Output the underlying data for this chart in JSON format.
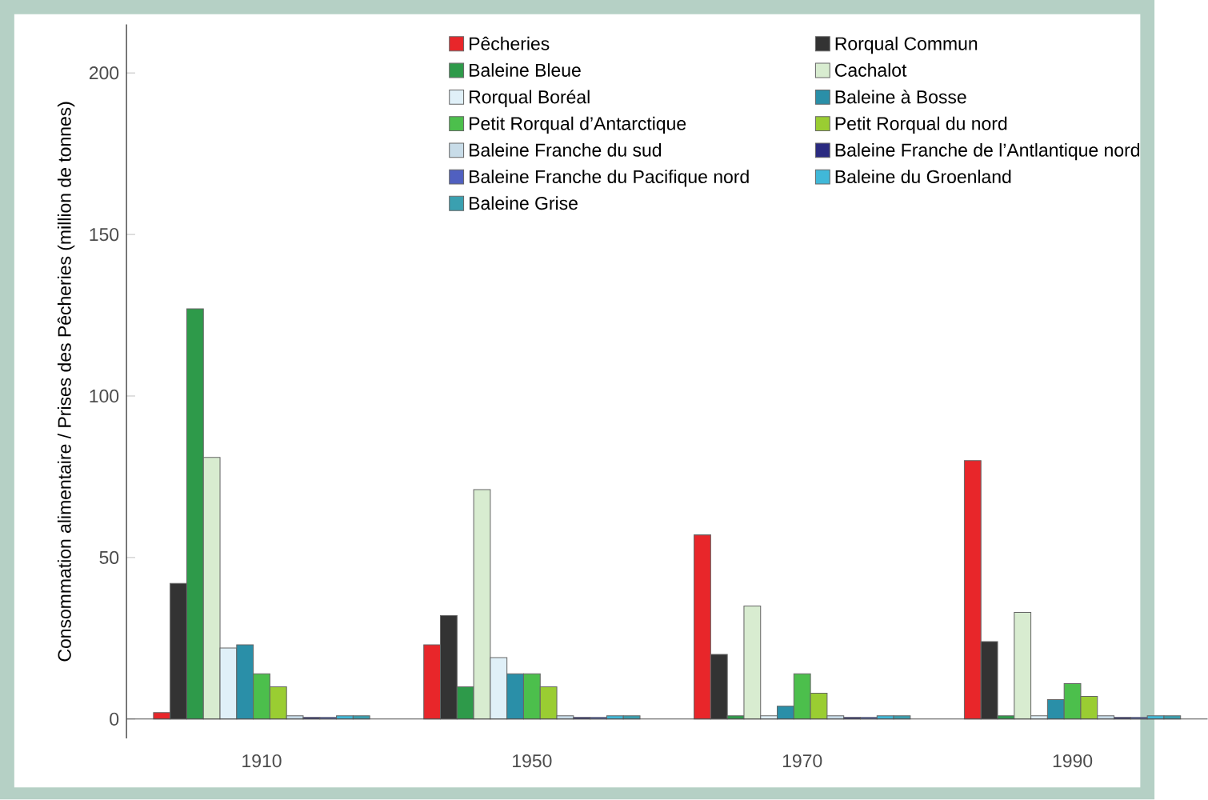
{
  "chart_data": {
    "type": "bar",
    "ylabel": "Consommation alimentaire / Prises des Pêcheries (million de tonnes)",
    "categories": [
      "1910",
      "1950",
      "1970",
      "1990"
    ],
    "ylim": [
      -6,
      215
    ],
    "yticks": [
      0,
      50,
      100,
      150,
      200
    ],
    "legend": "top",
    "grid": false,
    "series": [
      {
        "name": "Pêcheries",
        "color": "#e8262a",
        "values": [
          2,
          23,
          57,
          80
        ]
      },
      {
        "name": "Rorqual Commun",
        "color": "#333333",
        "values": [
          42,
          32,
          20,
          24
        ]
      },
      {
        "name": "Baleine Bleue",
        "color": "#2e9a4a",
        "values": [
          127,
          10,
          1,
          1
        ]
      },
      {
        "name": "Cachalot",
        "color": "#d8ecd0",
        "values": [
          81,
          71,
          35,
          33
        ]
      },
      {
        "name": "Rorqual Boréal",
        "color": "#e0f0f8",
        "values": [
          22,
          19,
          1,
          1
        ]
      },
      {
        "name": "Baleine à Bosse",
        "color": "#2a8fa8",
        "values": [
          23,
          14,
          4,
          6
        ]
      },
      {
        "name": "Petit Rorqual d’Antarctique",
        "color": "#4cbf4c",
        "values": [
          14,
          14,
          14,
          11
        ]
      },
      {
        "name": "Petit Rorqual du nord",
        "color": "#9acd32",
        "values": [
          10,
          10,
          8,
          7
        ]
      },
      {
        "name": "Baleine Franche du sud",
        "color": "#c8dce8",
        "values": [
          1,
          1,
          1,
          1
        ]
      },
      {
        "name": "Baleine Franche de l’Antlantique nord",
        "color": "#2a2a80",
        "values": [
          0.5,
          0.5,
          0.5,
          0.5
        ]
      },
      {
        "name": "Baleine Franche du Pacifique nord",
        "color": "#5060c0",
        "values": [
          0.5,
          0.5,
          0.5,
          0.5
        ]
      },
      {
        "name": "Baleine du Groenland",
        "color": "#40b8d8",
        "values": [
          1,
          1,
          1,
          1
        ]
      },
      {
        "name": "Baleine Grise",
        "color": "#3aa0b0",
        "values": [
          1,
          1,
          1,
          1
        ]
      }
    ]
  }
}
